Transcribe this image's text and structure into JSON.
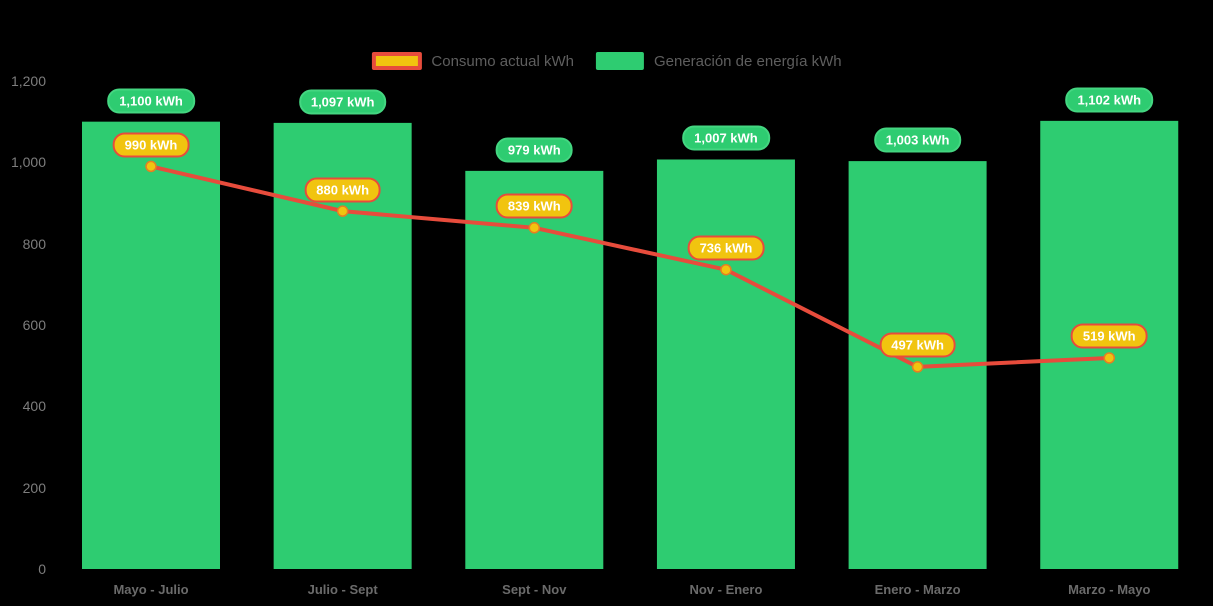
{
  "page": {
    "background": "#000000"
  },
  "colors": {
    "bar_green": "#2ecc71",
    "bar_badge_border": "#44d681",
    "line_red": "#e74c3c",
    "marker_yellow": "#f1c40f",
    "marker_border": "#e67e22",
    "line_badge_fill": "#f1c40f",
    "line_badge_border": "#e74c3c",
    "badge_text": "#ffffff",
    "axis_text": "#7d7d7d",
    "legend_text": "#5e5e5e"
  },
  "legend": {
    "items": [
      {
        "label": "Consumo actual kWh",
        "swatch": "line-swatch",
        "swatch_fill": "#f1c40f",
        "swatch_border": "#e74c3c"
      },
      {
        "label": "Generación de energía kWh",
        "swatch": "bar-swatch",
        "swatch_fill": "#2ecc71"
      }
    ]
  },
  "chart_data": {
    "type": "bar",
    "subtype": "bar-line-combo",
    "title": "",
    "xlabel": "",
    "ylabel": "",
    "grid": false,
    "legend_position": "top",
    "categories": [
      "Mayo - Julio",
      "Julio - Sept",
      "Sept - Nov",
      "Nov - Enero",
      "Enero - Marzo",
      "Marzo - Mayo"
    ],
    "series": [
      {
        "name": "Generación de energía kWh",
        "type": "bar",
        "color": "#2ecc71",
        "values": [
          1100,
          1097,
          979,
          1007,
          1003,
          1102
        ],
        "labels": [
          "1,100 kWh",
          "1,097 kWh",
          "979 kWh",
          "1,007 kWh",
          "1,003 kWh",
          "1,102 kWh"
        ]
      },
      {
        "name": "Consumo actual kWh",
        "type": "line",
        "color": "#e74c3c",
        "marker_fill": "#f1c40f",
        "marker_stroke": "#e67e22",
        "values": [
          990,
          880,
          839,
          736,
          497,
          519
        ],
        "labels": [
          "990 kWh",
          "880 kWh",
          "839 kWh",
          "736 kWh",
          "497 kWh",
          "519 kWh"
        ]
      }
    ],
    "yaxis": {
      "min": 0,
      "max": 1200,
      "step": 200,
      "tick_labels": [
        "0",
        "200",
        "400",
        "600",
        "800",
        "1,000",
        "1,200"
      ]
    }
  }
}
